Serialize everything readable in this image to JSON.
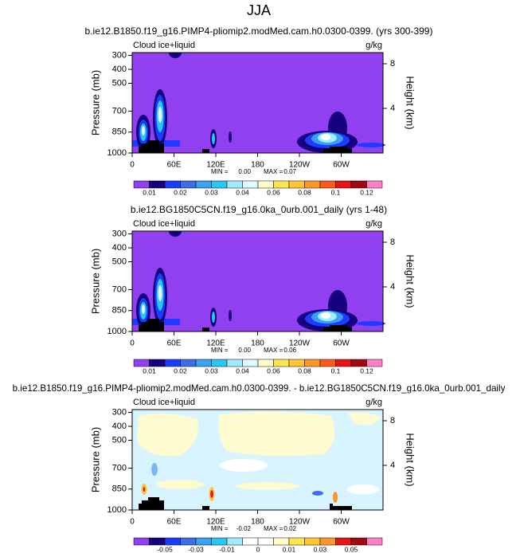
{
  "chart_data": [
    {
      "type": "contour",
      "suptitle": "JJA",
      "title": "b.ie12.B1850.f19_g16.PIMP4-pliomip2.modMed.cam.h0.0300-0399. (yrs 300-399)",
      "left_label": "Cloud ice+liquid",
      "right_label": "g/kg",
      "ylabel": "Pressure (mb)",
      "y2label": "Height (km)",
      "xlim": [
        0,
        360
      ],
      "xticks": [
        0,
        {
          "value": 60,
          "label": "60E"
        },
        {
          "value": 120,
          "label": "120E"
        },
        180,
        {
          "value": 240,
          "label": "120W"
        },
        {
          "value": 300,
          "label": "60W"
        }
      ],
      "ylim": [
        1000,
        280
      ],
      "yticks": [
        300,
        400,
        500,
        700,
        850,
        1000
      ],
      "y2lim": [
        0,
        9
      ],
      "y2ticks": [
        8,
        4
      ],
      "min_label": "MIN =",
      "min": "0.00",
      "max_label": "MAX =",
      "max": "0.07",
      "colors": [
        "#9040f0",
        "#16007e",
        "#1e3cff",
        "#3c6ee6",
        "#3ca0f0",
        "#28c8f0",
        "#a0ebff",
        "#dcfaff",
        "#fffac8",
        "#ffe650",
        "#ffc832",
        "#ff9628",
        "#ff5a1e",
        "#e61414",
        "#a00a0a",
        "#ff80c8"
      ],
      "levels": [
        0.01,
        null,
        0.02,
        null,
        0.03,
        null,
        0.04,
        null,
        0.06,
        null,
        0.08,
        null,
        0.1,
        null,
        0.12
      ]
    },
    {
      "type": "contour",
      "title": "b.ie12.BG1850C5CN.f19_g16.0ka_0urb.001_daily (yrs 1-48)",
      "left_label": "Cloud ice+liquid",
      "right_label": "g/kg",
      "ylabel": "Pressure (mb)",
      "y2label": "Height (km)",
      "xlim": [
        0,
        360
      ],
      "xticks": [
        0,
        {
          "value": 60,
          "label": "60E"
        },
        {
          "value": 120,
          "label": "120E"
        },
        180,
        {
          "value": 240,
          "label": "120W"
        },
        {
          "value": 300,
          "label": "60W"
        }
      ],
      "ylim": [
        1000,
        280
      ],
      "yticks": [
        300,
        400,
        500,
        700,
        850,
        1000
      ],
      "y2lim": [
        0,
        9
      ],
      "y2ticks": [
        8,
        4
      ],
      "min_label": "MIN =",
      "min": "0.00",
      "max_label": "MAX =",
      "max": "0.06",
      "colors": [
        "#9040f0",
        "#16007e",
        "#1e3cff",
        "#3c6ee6",
        "#3ca0f0",
        "#28c8f0",
        "#a0ebff",
        "#dcfaff",
        "#fffac8",
        "#ffe650",
        "#ffc832",
        "#ff9628",
        "#ff5a1e",
        "#e61414",
        "#a00a0a",
        "#ff80c8"
      ],
      "levels": [
        0.01,
        null,
        0.02,
        null,
        0.03,
        null,
        0.04,
        null,
        0.06,
        null,
        0.08,
        null,
        0.1,
        null,
        0.12
      ]
    },
    {
      "type": "contour",
      "title": "b.ie12.B1850.f19_g16.PIMP4-pliomip2.modMed.cam.h0.0300-0399. - b.ie12.BG1850C5CN.f19_g16.0ka_0urb.001_daily",
      "left_label": "Cloud ice+liquid",
      "right_label": "g/kg",
      "ylabel": "Pressure (mb)",
      "y2label": "Height (km)",
      "xlim": [
        0,
        360
      ],
      "xticks": [
        0,
        {
          "value": 60,
          "label": "60E"
        },
        {
          "value": 120,
          "label": "120E"
        },
        180,
        {
          "value": 240,
          "label": "120W"
        },
        {
          "value": 300,
          "label": "60W"
        }
      ],
      "ylim": [
        1000,
        280
      ],
      "yticks": [
        300,
        400,
        500,
        700,
        850,
        1000
      ],
      "y2lim": [
        0,
        9
      ],
      "y2ticks": [
        8,
        4
      ],
      "min_label": "MIN =",
      "min": "-0.02",
      "max_label": "MAX =",
      "max": "0.02",
      "colors": [
        "#9040f0",
        "#16007e",
        "#1e3cff",
        "#3c6ee6",
        "#3ca0f0",
        "#28c8f0",
        "#a0ebff",
        "#ffffff",
        "#ffffff",
        "#fffac8",
        "#ffe650",
        "#ffc832",
        "#ff9628",
        "#e61414",
        "#a00a0a",
        "#ff80c8"
      ],
      "levels": [
        null,
        -0.05,
        null,
        -0.03,
        null,
        -0.01,
        null,
        0,
        null,
        0.01,
        null,
        0.03,
        null,
        0.05,
        null
      ]
    }
  ]
}
